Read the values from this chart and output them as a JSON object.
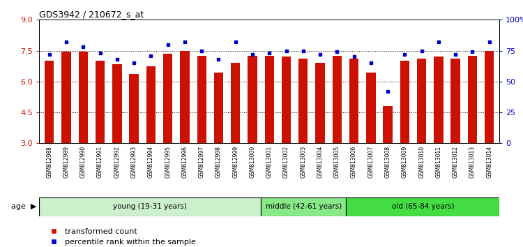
{
  "title": "GDS3942 / 210672_s_at",
  "samples": [
    "GSM812988",
    "GSM812989",
    "GSM812990",
    "GSM812991",
    "GSM812992",
    "GSM812993",
    "GSM812994",
    "GSM812995",
    "GSM812996",
    "GSM812997",
    "GSM812998",
    "GSM812999",
    "GSM813000",
    "GSM813001",
    "GSM813002",
    "GSM813003",
    "GSM813004",
    "GSM813005",
    "GSM813006",
    "GSM813007",
    "GSM813008",
    "GSM813009",
    "GSM813010",
    "GSM813011",
    "GSM813012",
    "GSM813013",
    "GSM813014"
  ],
  "red_values": [
    7.0,
    7.45,
    7.45,
    7.0,
    6.85,
    6.35,
    6.75,
    7.35,
    7.5,
    7.25,
    6.45,
    6.9,
    7.25,
    7.25,
    7.2,
    7.1,
    6.9,
    7.25,
    7.1,
    6.45,
    4.8,
    7.0,
    7.1,
    7.2,
    7.1,
    7.25,
    7.5
  ],
  "blue_values": [
    72,
    82,
    78,
    73,
    68,
    65,
    71,
    80,
    82,
    75,
    68,
    82,
    72,
    73,
    75,
    75,
    72,
    74,
    70,
    65,
    42,
    72,
    75,
    82,
    72,
    74,
    82
  ],
  "groups": [
    {
      "label": "young (19-31 years)",
      "start": 0,
      "end": 13,
      "color": "#ccf0cc"
    },
    {
      "label": "middle (42-61 years)",
      "start": 13,
      "end": 18,
      "color": "#88e888"
    },
    {
      "label": "old (65-84 years)",
      "start": 18,
      "end": 27,
      "color": "#44dd44"
    }
  ],
  "ylim_left": [
    3,
    9
  ],
  "ylim_right": [
    0,
    100
  ],
  "yticks_left": [
    3,
    4.5,
    6,
    7.5,
    9
  ],
  "yticks_right": [
    0,
    25,
    50,
    75,
    100
  ],
  "ytick_labels_right": [
    "0",
    "25",
    "50",
    "75",
    "100%"
  ],
  "bar_color": "#cc1100",
  "dot_color": "#0000cc",
  "background_color": "#ffffff",
  "plot_bg_color": "#ffffff",
  "tick_label_color_left": "#cc1100",
  "tick_label_color_right": "#0000cc",
  "sample_band_color": "#d8d8d8",
  "bar_width": 0.55
}
